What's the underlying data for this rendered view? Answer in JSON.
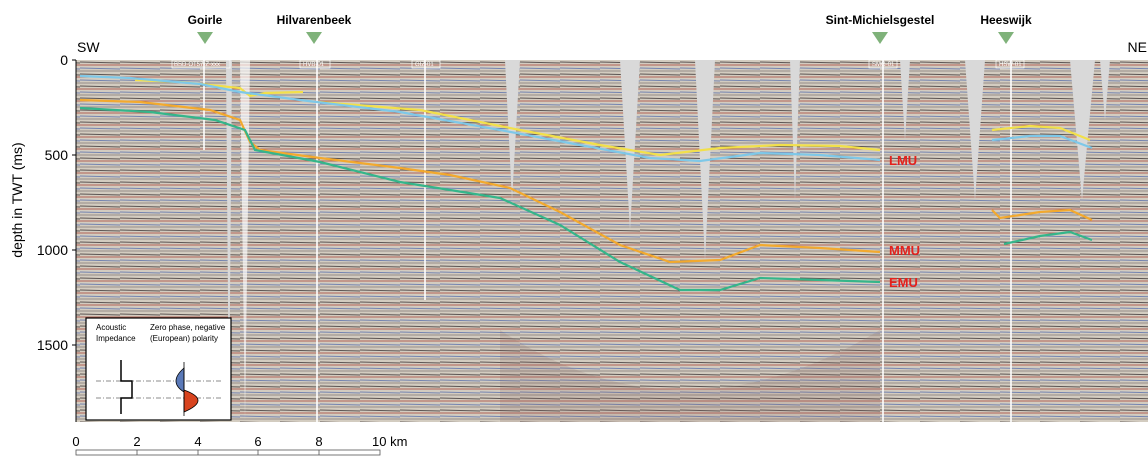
{
  "wells": [
    {
      "label": "Goirle",
      "marker_color": "#7fb27a"
    },
    {
      "label": "Hilvarenbeek",
      "marker_color": "#7fb27a"
    },
    {
      "label": "Sint-Michielsgestel",
      "marker_color": "#7fb27a"
    },
    {
      "label": "Heeswijk",
      "marker_color": "#7fb27a"
    }
  ],
  "well_tags": [
    "BSD-OT57-Z-xxx",
    "HVB-01",
    "GIZ-01",
    "SMG-01",
    "HSW-01"
  ],
  "orientation": {
    "left": "SW",
    "right": "NE"
  },
  "y_axis": {
    "label": "depth in TWT (ms)",
    "ticks": [
      "0",
      "500",
      "1000",
      "1500"
    ]
  },
  "x_axis": {
    "ticks": [
      "0",
      "2",
      "4",
      "6",
      "8",
      "10 km"
    ]
  },
  "horizons": [
    {
      "label": "",
      "color": "#f2e04a"
    },
    {
      "label": "LMU",
      "color": "#7ec8e8"
    },
    {
      "label": "MMU",
      "color": "#f2a92e"
    },
    {
      "label": "EMU",
      "color": "#35b58a"
    }
  ],
  "horizon_label_color": "#e4211c",
  "legend": {
    "col1": [
      "Acoustic",
      "Impedance"
    ],
    "col2": [
      "Zero phase, negative",
      "(European)  polarity"
    ]
  }
}
